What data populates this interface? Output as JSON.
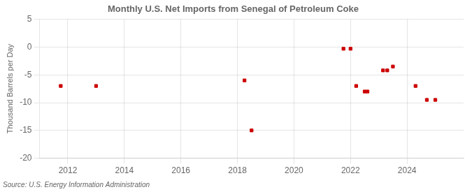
{
  "chart_data": {
    "type": "scatter",
    "title": "Monthly U.S. Net Imports from Senegal of Petroleum Coke",
    "ylabel": "Thousand Barrels per Day",
    "source": "Source: U.S. Energy Information Administration",
    "x": [
      2011.75,
      2013.0,
      2018.25,
      2018.5,
      2021.75,
      2022.0,
      2022.2,
      2022.5,
      2022.6,
      2023.15,
      2023.3,
      2023.5,
      2024.3,
      2024.7,
      2025.0
    ],
    "values": [
      -7.0,
      -7.0,
      -6.0,
      -15.0,
      -0.3,
      -0.3,
      -7.0,
      -8.0,
      -8.0,
      -4.2,
      -4.2,
      -3.5,
      -7.0,
      -9.5,
      -9.5
    ],
    "color": "#cc0000",
    "marker": "square",
    "xlim": [
      2011,
      2026
    ],
    "xticks": [
      2012,
      2014,
      2016,
      2018,
      2020,
      2022,
      2024
    ],
    "ylim": [
      -20,
      5
    ],
    "yticks": [
      -20,
      -15,
      -10,
      -5,
      0,
      5
    ],
    "grid": true
  }
}
